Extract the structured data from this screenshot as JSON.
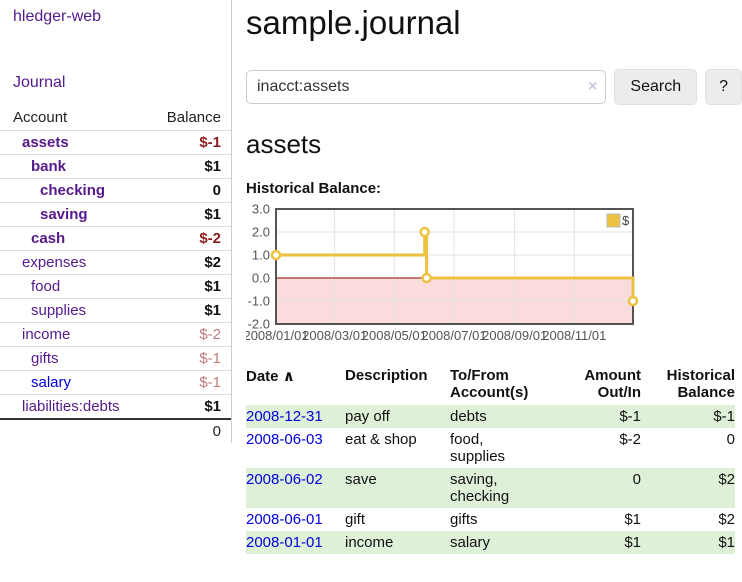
{
  "brand": "hledger-web",
  "nav": {
    "journal": "Journal"
  },
  "page": {
    "title": "sample.journal"
  },
  "search": {
    "value": "inacct:assets",
    "clear_icon": "×",
    "search_label": "Search",
    "help_label": "?"
  },
  "account_page": {
    "heading": "assets",
    "chart_title": "Historical Balance:"
  },
  "sidebar": {
    "col_account": "Account",
    "col_balance": "Balance",
    "accounts": [
      {
        "name": "assets",
        "depth": 1,
        "balance": "$-1",
        "bold": true,
        "neg": "strong"
      },
      {
        "name": "bank",
        "depth": 2,
        "balance": "$1",
        "bold": true
      },
      {
        "name": "checking",
        "depth": 3,
        "balance": "0",
        "bold": true
      },
      {
        "name": "saving",
        "depth": 3,
        "balance": "$1",
        "bold": true
      },
      {
        "name": "cash",
        "depth": 2,
        "balance": "$-2",
        "bold": true,
        "neg": "strong"
      },
      {
        "name": "expenses",
        "depth": 1,
        "balance": "$2"
      },
      {
        "name": "food",
        "depth": 2,
        "balance": "$1"
      },
      {
        "name": "supplies",
        "depth": 2,
        "balance": "$1"
      },
      {
        "name": "income",
        "depth": 1,
        "balance": "$-2",
        "neg": "soft"
      },
      {
        "name": "gifts",
        "depth": 2,
        "balance": "$-1",
        "neg": "soft"
      },
      {
        "name": "salary",
        "depth": 2,
        "balance": "$-1",
        "neg": "soft",
        "link_color": "blue"
      },
      {
        "name": "liabilities:debts",
        "depth": 1,
        "balance": "$1"
      }
    ],
    "total": "0"
  },
  "chart_data": {
    "type": "line",
    "title": "Historical Balance",
    "step": true,
    "x_start": "2008-01-01",
    "x_end": "2008-12-31",
    "points": [
      {
        "date": "2008-01-01",
        "value": 1
      },
      {
        "date": "2008-06-01",
        "value": 2
      },
      {
        "date": "2008-06-03",
        "value": 0
      },
      {
        "date": "2008-12-31",
        "value": -1
      }
    ],
    "ylim": [
      -2,
      3
    ],
    "yticks": [
      3.0,
      2.0,
      1.0,
      0.0,
      -1.0,
      -2.0
    ],
    "xticks": [
      {
        "label": "2008/01/01",
        "date": "2008-01-01"
      },
      {
        "label": "2008/03/01",
        "date": "2008-03-01"
      },
      {
        "label": "2008/05/01",
        "date": "2008-05-01"
      },
      {
        "label": "2008/07/01",
        "date": "2008-07-01"
      },
      {
        "label": "2008/09/01",
        "date": "2008-09-01"
      },
      {
        "label": "2008/11/01",
        "date": "2008-11-01"
      }
    ],
    "legend": [
      {
        "label": "$",
        "color": "#edc240"
      }
    ],
    "legend_position": "top-right",
    "grid": true,
    "line_color": "#edc240",
    "marker_fill": "#ffffff",
    "negative_region_color": "#fbdcdc",
    "zero_line_color": "#8b0000",
    "grid_color": "#e3e3e3",
    "border_color": "#545454",
    "tick_label_color": "#545454"
  },
  "register": {
    "sort_icon": "∧",
    "headers": {
      "date": "Date",
      "description": "Description",
      "accounts": "To/From Account(s)",
      "amount": "Amount Out/In",
      "balance": "Historical Balance"
    },
    "rows": [
      {
        "date": "2008-12-31",
        "description": "pay off",
        "accounts": "debts",
        "amount": "$-1",
        "balance": "$-1",
        "amount_negative": true,
        "balance_negative": true
      },
      {
        "date": "2008-06-03",
        "description": "eat & shop",
        "accounts": "food, supplies",
        "amount": "$-2",
        "balance": "0",
        "amount_negative": true,
        "balance_negative": false
      },
      {
        "date": "2008-06-02",
        "description": "save",
        "accounts": "saving, checking",
        "amount": "0",
        "balance": "$2",
        "amount_negative": false,
        "balance_negative": false
      },
      {
        "date": "2008-06-01",
        "description": "gift",
        "accounts": "gifts",
        "amount": "$1",
        "balance": "$2",
        "amount_negative": false,
        "balance_negative": false
      },
      {
        "date": "2008-01-01",
        "description": "income",
        "accounts": "salary",
        "amount": "$1",
        "balance": "$1",
        "amount_negative": false,
        "balance_negative": false
      }
    ]
  }
}
